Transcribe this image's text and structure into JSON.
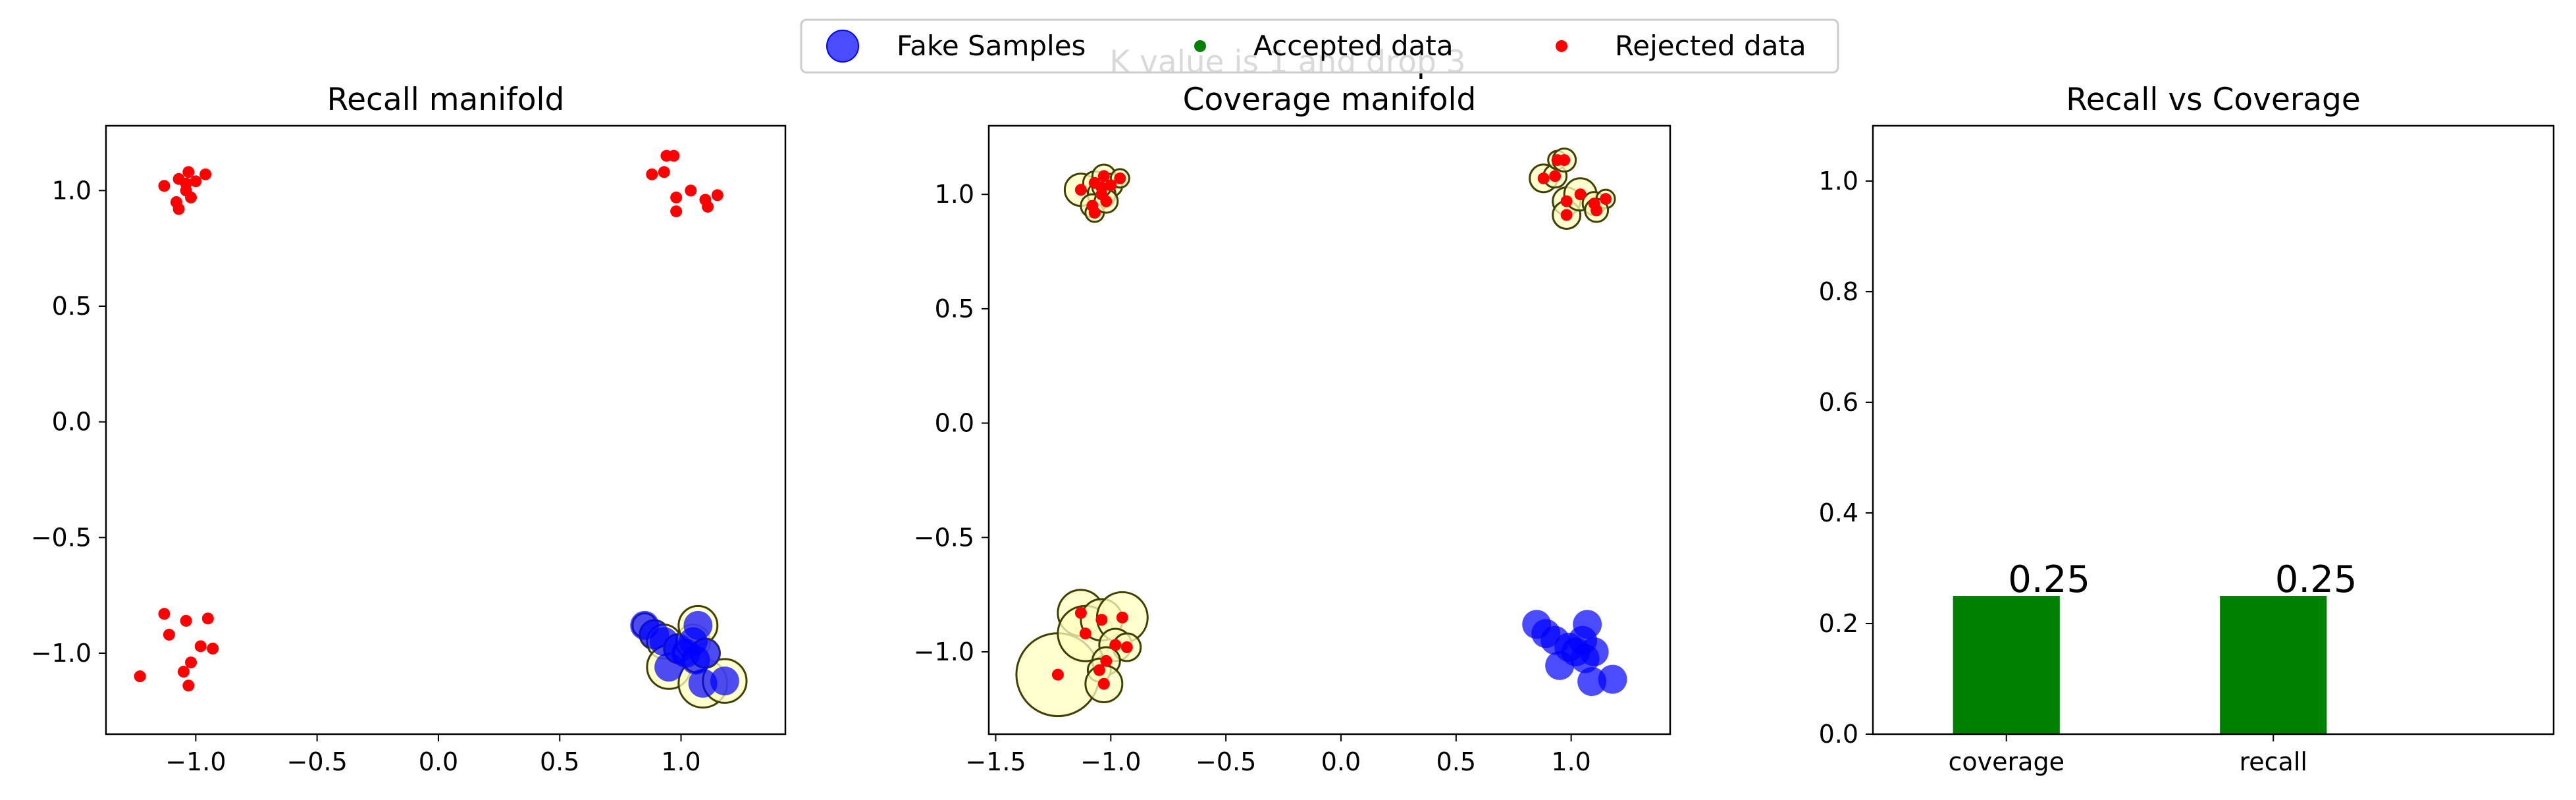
{
  "figure": {
    "suptitle": "K value is 1 and drop 3",
    "legend": {
      "placement": "top-center",
      "entries": [
        {
          "label": "Fake Samples",
          "color": "#0000ff",
          "marker": "large-circle"
        },
        {
          "label": "Accepted data",
          "color": "#008000",
          "marker": "small-dot"
        },
        {
          "label": "Rejected data",
          "color": "#ff0000",
          "marker": "small-dot"
        }
      ]
    },
    "colors": {
      "fake": "#0000ff",
      "rejected": "#ff0000",
      "accepted": "#008000",
      "manifold_fill": "#ffffc0",
      "manifold_edge": "#404000",
      "bar": "#008000"
    }
  },
  "chart_data": [
    {
      "type": "scatter",
      "title": "Recall manifold",
      "xlim": [
        -1.37,
        1.43
      ],
      "ylim": [
        -1.35,
        1.28
      ],
      "xticks": [
        -1.0,
        -0.5,
        0.0,
        0.5,
        1.0
      ],
      "xtick_labels": [
        "−1.0",
        "−0.5",
        "0.0",
        "0.5",
        "1.0"
      ],
      "yticks": [
        -1.0,
        -0.5,
        0.0,
        0.5,
        1.0
      ],
      "ytick_labels": [
        "−1.0",
        "−0.5",
        "0.0",
        "0.5",
        "1.0"
      ],
      "grid": false,
      "series": [
        {
          "name": "Rejected data",
          "color": "#ff0000",
          "points": [
            [
              -1.13,
              1.02
            ],
            [
              -1.07,
              1.05
            ],
            [
              -1.03,
              1.08
            ],
            [
              -1.0,
              1.04
            ],
            [
              -0.96,
              1.07
            ],
            [
              -1.04,
              1.0
            ],
            [
              -1.08,
              0.95
            ],
            [
              -1.07,
              0.92
            ],
            [
              -1.02,
              0.97
            ],
            [
              -1.04,
              1.03
            ],
            [
              0.88,
              1.07
            ],
            [
              0.93,
              1.08
            ],
            [
              0.94,
              1.15
            ],
            [
              0.97,
              1.15
            ],
            [
              0.98,
              0.97
            ],
            [
              0.98,
              0.91
            ],
            [
              1.04,
              1.0
            ],
            [
              1.1,
              0.96
            ],
            [
              1.15,
              0.98
            ],
            [
              1.11,
              0.93
            ],
            [
              -1.23,
              -1.1
            ],
            [
              -1.13,
              -0.83
            ],
            [
              -1.11,
              -0.92
            ],
            [
              -1.04,
              -0.86
            ],
            [
              -0.95,
              -0.85
            ],
            [
              -0.98,
              -0.97
            ],
            [
              -0.93,
              -0.98
            ],
            [
              -1.02,
              -1.04
            ],
            [
              -1.05,
              -1.08
            ],
            [
              -1.03,
              -1.14
            ]
          ]
        },
        {
          "name": "Fake Samples",
          "color": "#0000ff",
          "points": [
            [
              0.85,
              -0.88
            ],
            [
              0.89,
              -0.92
            ],
            [
              0.93,
              -0.95
            ],
            [
              0.95,
              -1.06
            ],
            [
              0.99,
              -0.98
            ],
            [
              1.02,
              -1.0
            ],
            [
              1.05,
              -0.95
            ],
            [
              1.07,
              -0.88
            ],
            [
              1.09,
              -1.13
            ],
            [
              1.18,
              -1.12
            ],
            [
              1.06,
              -1.03
            ],
            [
              1.1,
              -1.0
            ]
          ],
          "radii": [
            0.05,
            0.06,
            0.07,
            0.09,
            0.06,
            0.05,
            0.07,
            0.08,
            0.1,
            0.09,
            0.05,
            0.06
          ]
        }
      ]
    },
    {
      "type": "scatter",
      "title": "Coverage manifold",
      "xlim": [
        -1.53,
        1.43
      ],
      "ylim": [
        -1.36,
        1.3
      ],
      "xticks": [
        -1.5,
        -1.0,
        -0.5,
        0.0,
        0.5,
        1.0
      ],
      "xtick_labels": [
        "−1.5",
        "−1.0",
        "−0.5",
        "0.0",
        "0.5",
        "1.0"
      ],
      "yticks": [
        -1.0,
        -0.5,
        0.0,
        0.5,
        1.0
      ],
      "ytick_labels": [
        "−1.0",
        "−0.5",
        "0.0",
        "0.5",
        "1.0"
      ],
      "grid": false,
      "series": [
        {
          "name": "Rejected data",
          "color": "#ff0000",
          "points": [
            [
              -1.13,
              1.02
            ],
            [
              -1.07,
              1.05
            ],
            [
              -1.03,
              1.08
            ],
            [
              -1.0,
              1.04
            ],
            [
              -0.96,
              1.07
            ],
            [
              -1.04,
              1.0
            ],
            [
              -1.08,
              0.95
            ],
            [
              -1.07,
              0.92
            ],
            [
              -1.02,
              0.97
            ],
            [
              -1.04,
              1.03
            ],
            [
              0.88,
              1.07
            ],
            [
              0.93,
              1.08
            ],
            [
              0.94,
              1.15
            ],
            [
              0.97,
              1.15
            ],
            [
              0.98,
              0.97
            ],
            [
              0.98,
              0.91
            ],
            [
              1.04,
              1.0
            ],
            [
              1.1,
              0.96
            ],
            [
              1.15,
              0.98
            ],
            [
              1.11,
              0.93
            ],
            [
              -1.23,
              -1.1
            ],
            [
              -1.13,
              -0.83
            ],
            [
              -1.11,
              -0.92
            ],
            [
              -1.04,
              -0.86
            ],
            [
              -0.95,
              -0.85
            ],
            [
              -0.98,
              -0.97
            ],
            [
              -0.93,
              -0.98
            ],
            [
              -1.02,
              -1.04
            ],
            [
              -1.05,
              -1.08
            ],
            [
              -1.03,
              -1.14
            ]
          ],
          "radii": [
            0.07,
            0.05,
            0.05,
            0.05,
            0.04,
            0.06,
            0.05,
            0.04,
            0.05,
            0.04,
            0.06,
            0.05,
            0.04,
            0.05,
            0.06,
            0.06,
            0.07,
            0.05,
            0.04,
            0.05,
            0.18,
            0.1,
            0.12,
            0.09,
            0.11,
            0.07,
            0.06,
            0.06,
            0.05,
            0.08
          ]
        },
        {
          "name": "Fake Samples",
          "color": "#0000ff",
          "points": [
            [
              0.85,
              -0.88
            ],
            [
              0.89,
              -0.92
            ],
            [
              0.93,
              -0.95
            ],
            [
              0.95,
              -1.06
            ],
            [
              0.99,
              -0.98
            ],
            [
              1.02,
              -1.0
            ],
            [
              1.05,
              -0.95
            ],
            [
              1.07,
              -0.88
            ],
            [
              1.09,
              -1.13
            ],
            [
              1.18,
              -1.12
            ],
            [
              1.06,
              -1.03
            ],
            [
              1.1,
              -1.0
            ]
          ]
        }
      ]
    },
    {
      "type": "bar",
      "title": "Recall vs Coverage",
      "categories": [
        "coverage",
        "recall"
      ],
      "values": [
        0.25,
        0.25
      ],
      "value_labels": [
        "0.25",
        "0.25"
      ],
      "ylim": [
        0,
        1.1
      ],
      "yticks": [
        0.0,
        0.2,
        0.4,
        0.6,
        0.8,
        1.0
      ],
      "ytick_labels": [
        "0.0",
        "0.2",
        "0.4",
        "0.6",
        "0.8",
        "1.0"
      ],
      "color": "#008000",
      "grid": false
    }
  ]
}
